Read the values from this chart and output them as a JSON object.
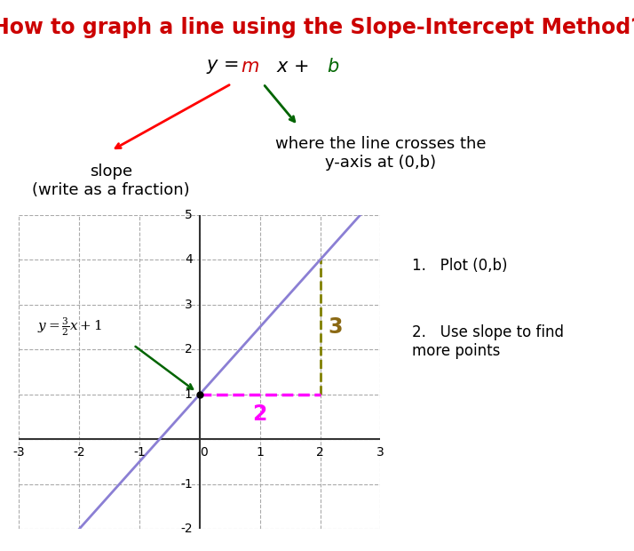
{
  "title": "How to graph a line using the Slope-Intercept Method?",
  "title_color": "#cc0000",
  "title_fontsize": 17,
  "bg_color": "#ffffff",
  "equation_label": "y = mx + b",
  "slope_label": "slope\n(write as a fraction)",
  "intercept_label": "where the line crosses the\ny-axis at (0,b)",
  "line_color": "#8B7FD4",
  "line_slope": 1.5,
  "line_intercept": 1,
  "xlim": [
    -3,
    3
  ],
  "ylim": [
    -2,
    5
  ],
  "grid_color": "#aaaaaa",
  "axis_color": "#333333",
  "dashed_vertical_color": "#808000",
  "dashed_horizontal_color": "#ff00ff",
  "label_2_color": "#ff00ff",
  "label_3_color": "#8B6914",
  "formula_color_black": "#000000",
  "formula_color_m": "#cc0000",
  "formula_color_b": "#006600",
  "formula_color_frac_num": "#000000",
  "formula_color_frac_den": "#ff00ff",
  "steps_text": [
    "Plot (0,b)",
    "Use slope to find\nmore points"
  ],
  "graph_equation_color_frac": "#ff00ff",
  "graph_equation_color_normal": "#000000"
}
